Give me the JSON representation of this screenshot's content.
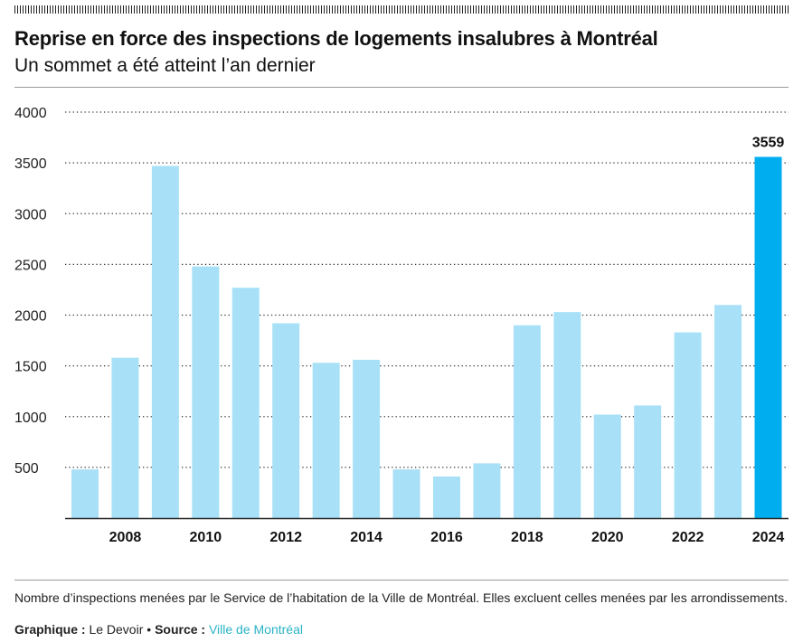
{
  "header": {
    "title": "Reprise en force des inspections de logements insalubres à Montréal",
    "subtitle": "Un sommet a été atteint l’an dernier"
  },
  "colors": {
    "bar_default": "#a8e1f7",
    "bar_highlight": "#00aeef",
    "grid": "#333333",
    "axis": "#222222"
  },
  "chart_data": {
    "type": "bar",
    "title": "Reprise en force des inspections de logements insalubres à Montréal",
    "subtitle": "Un sommet a été atteint l’an dernier",
    "categories": [
      "2007",
      "2008",
      "2009",
      "2010",
      "2011",
      "2012",
      "2013",
      "2014",
      "2015",
      "2016",
      "2017",
      "2018",
      "2019",
      "2020",
      "2021",
      "2022",
      "2023",
      "2024"
    ],
    "x_tick_labels": [
      "2008",
      "2010",
      "2012",
      "2014",
      "2016",
      "2018",
      "2020",
      "2022",
      "2024"
    ],
    "y_ticks": [
      500,
      1000,
      1500,
      2000,
      2500,
      3000,
      3500,
      4000
    ],
    "values": [
      480,
      1580,
      3470,
      2480,
      2270,
      1920,
      1530,
      1560,
      480,
      410,
      540,
      1900,
      2030,
      1020,
      1110,
      1830,
      2100,
      3559
    ],
    "highlight_category": "2024",
    "data_labels": [
      {
        "category": "2024",
        "text": "3559"
      }
    ],
    "ylim": [
      0,
      4000
    ],
    "xlabel": "",
    "ylabel": "",
    "grid": "horizontal dotted",
    "legend": "none"
  },
  "footer": {
    "note": "Nombre d’inspections menées par le Service de l’habitation de la Ville de Montréal. Elles excluent celles menées par les arrondissements.",
    "graphic_label": "Graphique :",
    "graphic_value": "Le Devoir",
    "separator": "•",
    "source_label": "Source :",
    "source_value": "Ville de Montréal"
  }
}
